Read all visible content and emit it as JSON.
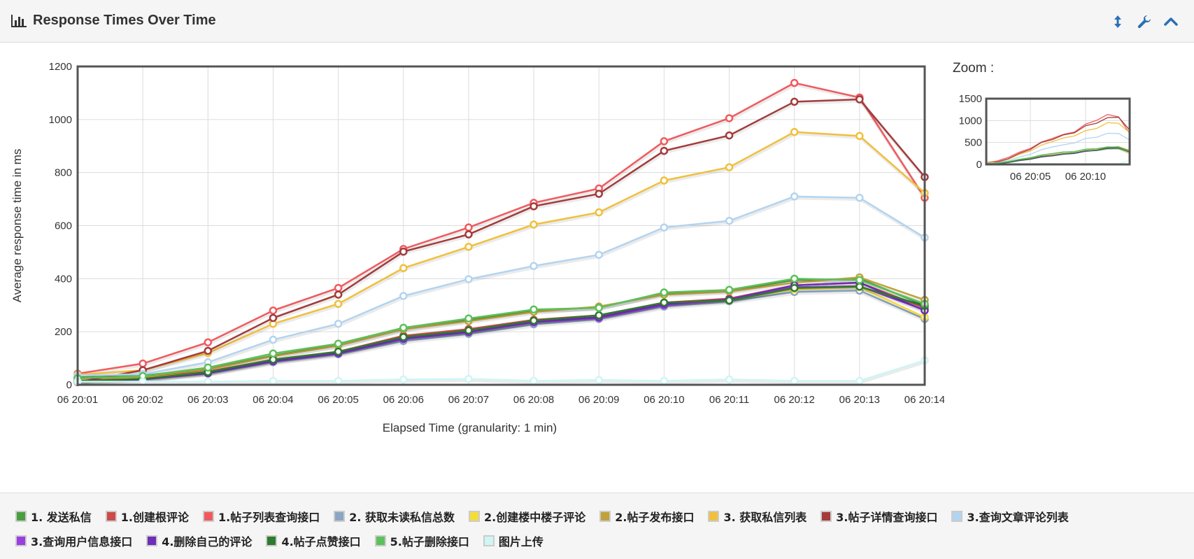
{
  "header": {
    "title": "Response Times Over Time",
    "title_icon": "bar-chart-icon",
    "tools": [
      {
        "name": "resize-vertical-icon"
      },
      {
        "name": "wrench-icon"
      },
      {
        "name": "chevron-up-icon"
      }
    ]
  },
  "zoom": {
    "label": "Zoom :",
    "y_ticks": [
      "0",
      "500",
      "1000",
      "1500"
    ],
    "x_ticks": [
      "06 20:05",
      "06 20:10"
    ],
    "ylim": [
      0,
      1500
    ]
  },
  "chart_data": {
    "type": "line",
    "title": "",
    "xlabel": "Elapsed Time (granularity: 1 min)",
    "ylabel": "Average response time in ms",
    "ylim": [
      0,
      1200
    ],
    "yticks": [
      "0",
      "200",
      "400",
      "600",
      "800",
      "1000",
      "1200"
    ],
    "x": [
      "06 20:01",
      "06 20:02",
      "06 20:03",
      "06 20:04",
      "06 20:05",
      "06 20:06",
      "06 20:07",
      "06 20:08",
      "06 20:09",
      "06 20:10",
      "06 20:11",
      "06 20:12",
      "06 20:13",
      "06 20:14"
    ],
    "grid": true,
    "legend_position": "bottom",
    "series": [
      {
        "name": "1. 发送私信",
        "color": "#4a9e3f",
        "values": [
          28,
          35,
          60,
          110,
          150,
          210,
          245,
          280,
          292,
          345,
          355,
          395,
          400,
          300
        ]
      },
      {
        "name": "1.创建根评论",
        "color": "#cc4a4a",
        "values": [
          22,
          28,
          50,
          95,
          125,
          185,
          210,
          245,
          262,
          310,
          325,
          375,
          385,
          290
        ]
      },
      {
        "name": "1.帖子列表查询接口",
        "color": "#f05a5e",
        "values": [
          42,
          80,
          160,
          280,
          365,
          512,
          593,
          686,
          740,
          918,
          1005,
          1138,
          1083,
          705
        ]
      },
      {
        "name": "2. 获取未读私信总数",
        "color": "#8aa6c2",
        "values": [
          15,
          20,
          42,
          85,
          115,
          165,
          192,
          228,
          248,
          295,
          315,
          350,
          355,
          248
        ]
      },
      {
        "name": "2.创建楼中楼子评论",
        "color": "#f5dc3c",
        "values": [
          18,
          25,
          48,
          92,
          122,
          178,
          202,
          238,
          255,
          305,
          320,
          360,
          368,
          255
        ]
      },
      {
        "name": "2.帖子发布接口",
        "color": "#c0a23a",
        "values": [
          25,
          32,
          58,
          108,
          148,
          210,
          240,
          275,
          295,
          340,
          352,
          385,
          405,
          320
        ]
      },
      {
        "name": "3. 获取私信列表",
        "color": "#f0c03c",
        "values": [
          38,
          55,
          120,
          230,
          305,
          440,
          520,
          604,
          650,
          770,
          820,
          953,
          938,
          723
        ]
      },
      {
        "name": "3.帖子详情查询接口",
        "color": "#a33b3b",
        "values": [
          10,
          55,
          128,
          252,
          340,
          502,
          567,
          673,
          720,
          882,
          940,
          1067,
          1076,
          783
        ]
      },
      {
        "name": "3.查询文章评论列表",
        "color": "#b3d4f0",
        "values": [
          35,
          40,
          85,
          170,
          230,
          335,
          398,
          448,
          490,
          593,
          618,
          710,
          705,
          555
        ]
      },
      {
        "name": "3.查询用户信息接口",
        "color": "#9b3ee0",
        "values": [
          15,
          22,
          45,
          88,
          118,
          172,
          198,
          235,
          252,
          300,
          320,
          368,
          372,
          282
        ]
      },
      {
        "name": "4.删除自己的评论",
        "color": "#6e2db8",
        "values": [
          12,
          20,
          44,
          90,
          120,
          175,
          200,
          238,
          255,
          305,
          322,
          375,
          385,
          280
        ]
      },
      {
        "name": "4.帖子点赞接口",
        "color": "#2e7a2e",
        "values": [
          14,
          22,
          48,
          95,
          125,
          180,
          205,
          242,
          262,
          310,
          318,
          365,
          370,
          298
        ]
      },
      {
        "name": "5.帖子删除接口",
        "color": "#5cc05c",
        "values": [
          25,
          33,
          65,
          118,
          155,
          215,
          250,
          284,
          290,
          348,
          358,
          400,
          395,
          305
        ]
      },
      {
        "name": "图片上传",
        "color": "#cff5f5",
        "values": [
          12,
          12,
          12,
          15,
          15,
          20,
          22,
          15,
          18,
          15,
          20,
          15,
          15,
          92
        ]
      }
    ]
  }
}
